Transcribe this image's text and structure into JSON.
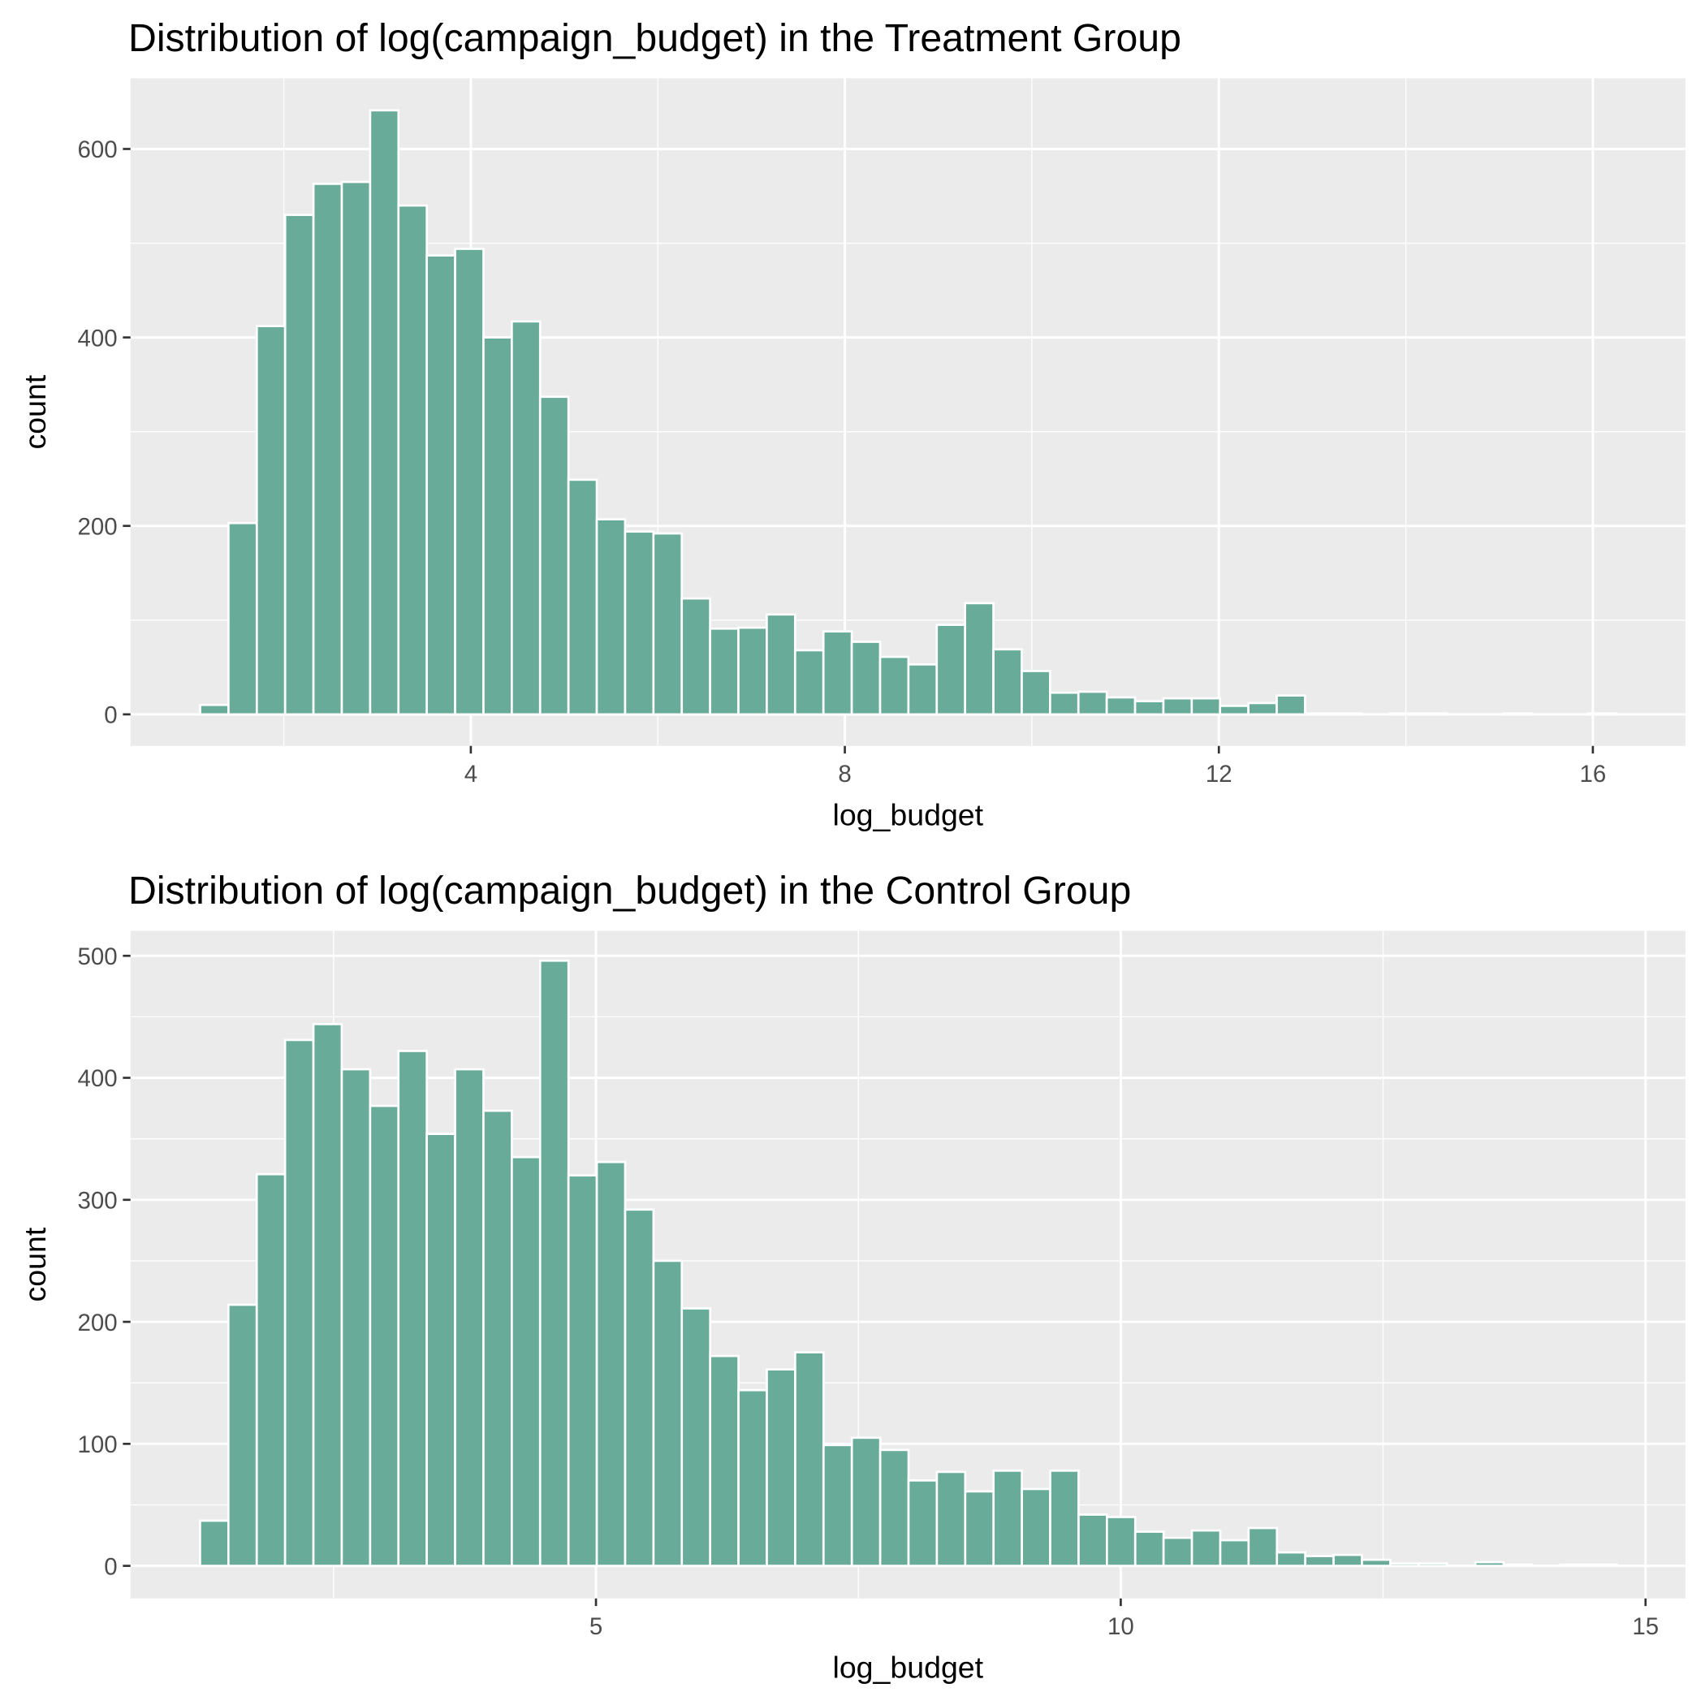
{
  "chart_data": [
    {
      "type": "histogram",
      "title": "Distribution of log(campaign_budget) in the Treatment Group",
      "x_label": "log_budget",
      "y_label": "count",
      "color": "#67ab98",
      "grid": true,
      "minor_grid": true,
      "bins": [
        1.105,
        1.408,
        1.711,
        2.014,
        2.317,
        2.62,
        2.923,
        3.226,
        3.529,
        3.832,
        4.135,
        4.438,
        4.741,
        5.044,
        5.347,
        5.65,
        5.953,
        6.256,
        6.559,
        6.862,
        7.165,
        7.468,
        7.771,
        8.074,
        8.377,
        8.68,
        8.983,
        9.286,
        9.589,
        9.892,
        10.195,
        10.498,
        10.801,
        11.104,
        11.407,
        11.71,
        12.013,
        12.316,
        12.619,
        12.922,
        13.225,
        13.528,
        13.831,
        14.134,
        14.437,
        14.74,
        15.043,
        15.346,
        15.649,
        15.952,
        16.255
      ],
      "values": [
        10,
        203,
        412,
        530,
        563,
        565,
        641,
        540,
        487,
        494,
        400,
        417,
        337,
        249,
        207,
        194,
        192,
        123,
        91,
        92,
        106,
        68,
        88,
        77,
        61,
        53,
        95,
        118,
        69,
        46,
        23,
        24,
        18,
        14,
        17,
        17,
        9,
        12,
        20,
        1,
        1,
        0,
        1,
        1,
        0,
        0,
        1,
        0,
        0,
        1
      ],
      "xlim": [
        0.36,
        16.99
      ],
      "xticks": [
        4,
        8,
        12,
        16
      ],
      "ylim": [
        -33.5,
        675
      ],
      "yticks": [
        0,
        200,
        400,
        600
      ]
    },
    {
      "type": "histogram",
      "title": "Distribution of log(campaign_budget) in the Control Group",
      "x_label": "log_budget",
      "y_label": "count",
      "color": "#67ab98",
      "grid": true,
      "minor_grid": true,
      "bins": [
        1.228,
        1.498,
        1.768,
        2.038,
        2.308,
        2.578,
        2.848,
        3.118,
        3.388,
        3.658,
        3.928,
        4.198,
        4.468,
        4.738,
        5.008,
        5.278,
        5.548,
        5.818,
        6.088,
        6.358,
        6.628,
        6.898,
        7.168,
        7.438,
        7.708,
        7.978,
        8.248,
        8.518,
        8.788,
        9.058,
        9.328,
        9.598,
        9.868,
        10.138,
        10.408,
        10.678,
        10.948,
        11.218,
        11.488,
        11.758,
        12.028,
        12.298,
        12.568,
        12.838,
        13.108,
        13.378,
        13.648,
        13.918,
        14.188,
        14.458,
        14.728
      ],
      "values": [
        37,
        214,
        321,
        431,
        444,
        407,
        377,
        422,
        354,
        407,
        373,
        335,
        496,
        320,
        331,
        292,
        250,
        211,
        172,
        144,
        161,
        175,
        99,
        105,
        95,
        70,
        77,
        61,
        78,
        63,
        78,
        42,
        40,
        28,
        23,
        29,
        21,
        31,
        11,
        8,
        9,
        5,
        2,
        2,
        0,
        3,
        1,
        0,
        1,
        1
      ],
      "xlim": [
        0.565,
        15.38
      ],
      "xticks": [
        5,
        10,
        15
      ],
      "ylim": [
        -26.7,
        520.5
      ],
      "yticks": [
        0,
        100,
        200,
        300,
        400,
        500
      ]
    }
  ]
}
